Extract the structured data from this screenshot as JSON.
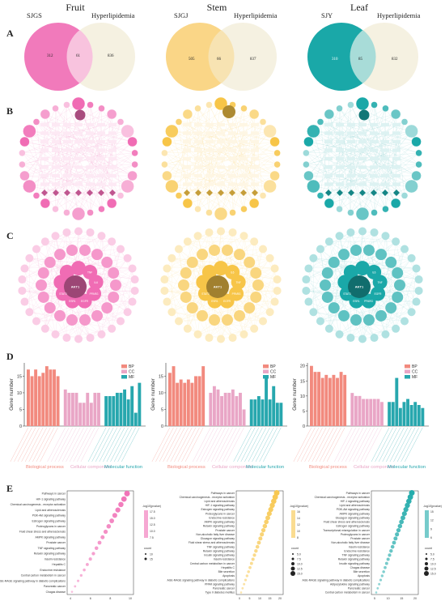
{
  "columns": [
    {
      "title": "Fruit",
      "set_label": "SJGS",
      "disease_label": "Hyperlipidemia",
      "left_only": "312",
      "overlap": "61",
      "right_only": "836",
      "color": "#f06cb4",
      "soft": "#f6b6d8",
      "bar_colors": [
        "#f28a7e",
        "#e9a6c6",
        "#27a7ae"
      ]
    },
    {
      "title": "Stem",
      "set_label": "SJGJ",
      "disease_label": "Hyperlipidemia",
      "left_only": "505",
      "overlap": "66",
      "right_only": "837",
      "color": "#f7c548",
      "soft": "#fbe3a4",
      "bar_colors": [
        "#f28a7e",
        "#e9a6c6",
        "#27a7ae"
      ]
    },
    {
      "title": "Leaf",
      "set_label": "SJY",
      "disease_label": "Hyperlipidemia",
      "left_only": "310",
      "overlap": "85",
      "right_only": "832",
      "color": "#1aa8a8",
      "soft": "#9fd8d8",
      "bar_colors": [
        "#f28a7e",
        "#e9a6c6",
        "#27a7ae"
      ]
    }
  ],
  "panels": [
    "A",
    "B",
    "C",
    "D",
    "E"
  ],
  "go": {
    "categories": [
      "Biological process",
      "Cellular component",
      "Molecular function"
    ],
    "legend": [
      "BP",
      "CC",
      "MF"
    ],
    "ylabel": "Gene number",
    "yticks": [
      [
        "0",
        "5",
        "10",
        "15"
      ],
      [
        "0",
        "5",
        "10",
        "15"
      ],
      [
        "0",
        "5",
        "10",
        "15",
        "20"
      ]
    ],
    "ymax": [
      19,
      19,
      21
    ]
  },
  "chart_data": [
    {
      "type": "bar",
      "title": "",
      "ylabel": "Gene number",
      "ylim": [
        0,
        19
      ],
      "series": [
        {
          "name": "BP",
          "values": [
            17,
            15,
            17,
            15,
            16,
            18,
            17,
            17,
            15
          ]
        },
        {
          "name": "CC",
          "values": [
            11,
            10,
            10,
            10,
            7,
            7,
            10,
            7,
            10,
            10
          ]
        },
        {
          "name": "MF",
          "values": [
            9,
            9,
            9,
            10,
            10,
            11,
            8,
            12,
            4,
            13
          ]
        }
      ]
    },
    {
      "type": "bar",
      "title": "",
      "ylabel": "Gene number",
      "ylim": [
        0,
        19
      ],
      "series": [
        {
          "name": "BP",
          "values": [
            16,
            18,
            13,
            14,
            13,
            14,
            13,
            15,
            15,
            18
          ]
        },
        {
          "name": "CC",
          "values": [
            10,
            12,
            11,
            9,
            10,
            10,
            11,
            9,
            10,
            5
          ]
        },
        {
          "name": "MF",
          "values": [
            8,
            8,
            9,
            8,
            15,
            8,
            12,
            7,
            7
          ]
        }
      ]
    },
    {
      "type": "bar",
      "title": "",
      "ylabel": "Gene number",
      "ylim": [
        0,
        21
      ],
      "series": [
        {
          "name": "BP",
          "values": [
            20,
            18,
            18,
            16,
            17,
            16,
            17,
            16,
            18,
            17
          ]
        },
        {
          "name": "CC",
          "values": [
            11,
            10,
            10,
            9,
            9,
            9,
            9,
            9,
            8
          ]
        },
        {
          "name": "MF",
          "values": [
            8,
            8,
            16,
            6,
            8,
            9,
            7,
            8,
            7,
            6
          ]
        }
      ]
    }
  ],
  "kegg": {
    "legend_title": "-log10(pvalue)",
    "count_title": "count",
    "fruit": {
      "pathways": [
        "Pathways in cancer",
        "HIF-1 signaling pathway",
        "Chemical carcinogenesis - receptor activation",
        "Lipid and atherosclerosis",
        "PI3K-Akt signaling pathway",
        "Estrogen signaling pathway",
        "Proteoglycans in cancer",
        "Fluid shear stress and atherosclerosis",
        "AMPK signaling pathway",
        "Prostate cancer",
        "TNF signaling pathway",
        "Relaxin signaling pathway",
        "Insulin resistance",
        "Hepatitis C",
        "Endocrine resistance",
        "Central carbon metabolism in cancer",
        "AGE-RAGE signaling pathway in diabetic complications",
        "Pancreatic cancer",
        "Chagas disease"
      ],
      "legend_ticks": [
        "17.5",
        "15.0",
        "12.5",
        "10.0",
        "7.5"
      ],
      "count_ticks": [
        "10",
        "15"
      ],
      "x_ticks": [
        "4",
        "6",
        "8",
        "10"
      ]
    },
    "stem": {
      "pathways": [
        "Pathways in cancer",
        "Chemical carcinogenesis - receptor activation",
        "Lipid and atherosclerosis",
        "HIF-1 signaling pathway",
        "Estrogen signaling pathway",
        "Proteoglycans in cancer",
        "Endocrine resistance",
        "AMPK signaling pathway",
        "Relaxin signaling pathway",
        "Prostate cancer",
        "Non-alcoholic fatty liver disease",
        "Glucagon signaling pathway",
        "Fluid shear stress and atherosclerosis",
        "TNF signaling pathway",
        "Relaxin signaling pathway",
        "Insulin signaling pathway",
        "Insulin resistance",
        "Central carbon metabolism in cancer",
        "Hepatitis C",
        "Bile secretion",
        "Apoptosis",
        "AGE-RAGE signaling pathway in diabetic complications",
        "PPAR signaling pathway",
        "Pancreatic cancer",
        "Type II diabetes mellitus"
      ],
      "legend_ticks": [
        "16",
        "14",
        "12",
        "10",
        "8"
      ],
      "count_ticks": [
        "5.0",
        "7.5",
        "10.0",
        "12.5",
        "15.0"
      ],
      "x_ticks": [
        "0",
        "5",
        "10",
        "15",
        "20"
      ]
    },
    "leaf": {
      "pathways": [
        "Pathways in cancer",
        "Chemical carcinogenesis - receptor activation",
        "HIF-1 signaling pathway",
        "Lipid and atherosclerosis",
        "PI3K-Akt signaling pathway",
        "AMPK signaling pathway",
        "Glucagon signaling pathway",
        "Fluid shear stress and atherosclerosis",
        "Estrogen signaling pathway",
        "Transcriptional misregulation in cancer",
        "Proteoglycans in cancer",
        "Prostate cancer",
        "Non-alcoholic fatty liver disease",
        "Insulin resistance",
        "Endocrine resistance",
        "TNF signaling pathway",
        "Relaxin signaling pathway",
        "Insulin signaling pathway",
        "Chagas disease",
        "Bile secretion",
        "Apoptosis",
        "AGE-RAGE signaling pathway in diabetic complications",
        "Adipocytokine signaling pathway",
        "Pancreatic cancer",
        "Central carbon metabolism in cancer"
      ],
      "legend_ticks": [
        "15",
        "12",
        "9",
        "6"
      ],
      "count_ticks": [
        "5.0",
        "7.5",
        "10.0",
        "12.5",
        "15.0"
      ],
      "x_ticks": [
        "5",
        "10",
        "15",
        "20"
      ]
    }
  },
  "ppi_c": {
    "fruit_hubs": [
      "AKT1",
      "TNF",
      "IL6",
      "PPARG",
      "EGFR",
      "ESR1",
      "STAT3",
      "MMP9",
      "PTGS2",
      "HIF1A",
      "CASP3",
      "JUN",
      "IL1B",
      "SRC",
      "PPARA",
      "INS",
      "ALB",
      "MAPK1",
      "CCND1",
      "VEGFA"
    ],
    "stem_hubs": [
      "AKT1",
      "IL6",
      "TNF",
      "PPARG",
      "EGFR",
      "ESR1",
      "STAT3",
      "MMP9",
      "PTGS2",
      "HIF1A",
      "CASP3",
      "SERPINE1",
      "ERBB2",
      "NR3C1",
      "CYP1A1",
      "INS",
      "PPARA",
      "HMOX1",
      "JUN",
      "VEGFA"
    ],
    "leaf_hubs": [
      "AKT1",
      "IL6",
      "TNF",
      "EGFR",
      "PPARG",
      "ESR1",
      "STAT3",
      "MMP9",
      "PTGS2",
      "HIF1A",
      "CASP3",
      "JUN",
      "SRC",
      "IL1B",
      "PPARA",
      "INS",
      "ALB",
      "MAPK1",
      "CCND1",
      "VEGFA"
    ]
  }
}
